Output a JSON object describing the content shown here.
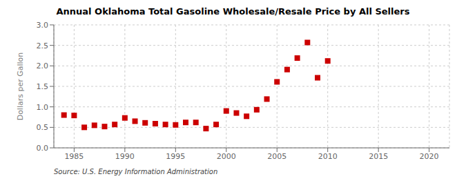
{
  "chart_data": {
    "type": "scatter",
    "title": "Annual Oklahoma Total Gasoline Wholesale/Resale Price by All Sellers",
    "ylabel": "Dollars per Gallon",
    "source": "Source: U.S. Energy Information Administration",
    "x": [
      1984,
      1985,
      1986,
      1987,
      1988,
      1989,
      1990,
      1991,
      1992,
      1993,
      1994,
      1995,
      1996,
      1997,
      1998,
      1999,
      2000,
      2001,
      2002,
      2003,
      2004,
      2005,
      2006,
      2007,
      2008,
      2009,
      2010
    ],
    "values": [
      0.8,
      0.79,
      0.5,
      0.55,
      0.52,
      0.57,
      0.73,
      0.65,
      0.61,
      0.59,
      0.57,
      0.56,
      0.62,
      0.62,
      0.47,
      0.57,
      0.9,
      0.85,
      0.77,
      0.93,
      1.19,
      1.61,
      1.91,
      2.19,
      2.57,
      1.71,
      2.12
    ],
    "color": "#cc0000",
    "marker": "square",
    "xlim": [
      1983,
      2022
    ],
    "xticks": [
      1985,
      1990,
      1995,
      2000,
      2005,
      2010,
      2015,
      2020
    ],
    "ylim": [
      0.0,
      3.0
    ],
    "yticks": [
      {
        "value": 0,
        "label": "0.0"
      },
      0.5,
      {
        "value": 1,
        "label": "1.0"
      },
      1.5,
      {
        "value": 2,
        "label": "2.0"
      },
      2.5,
      {
        "value": 3,
        "label": "3.0"
      }
    ],
    "grid": true
  }
}
